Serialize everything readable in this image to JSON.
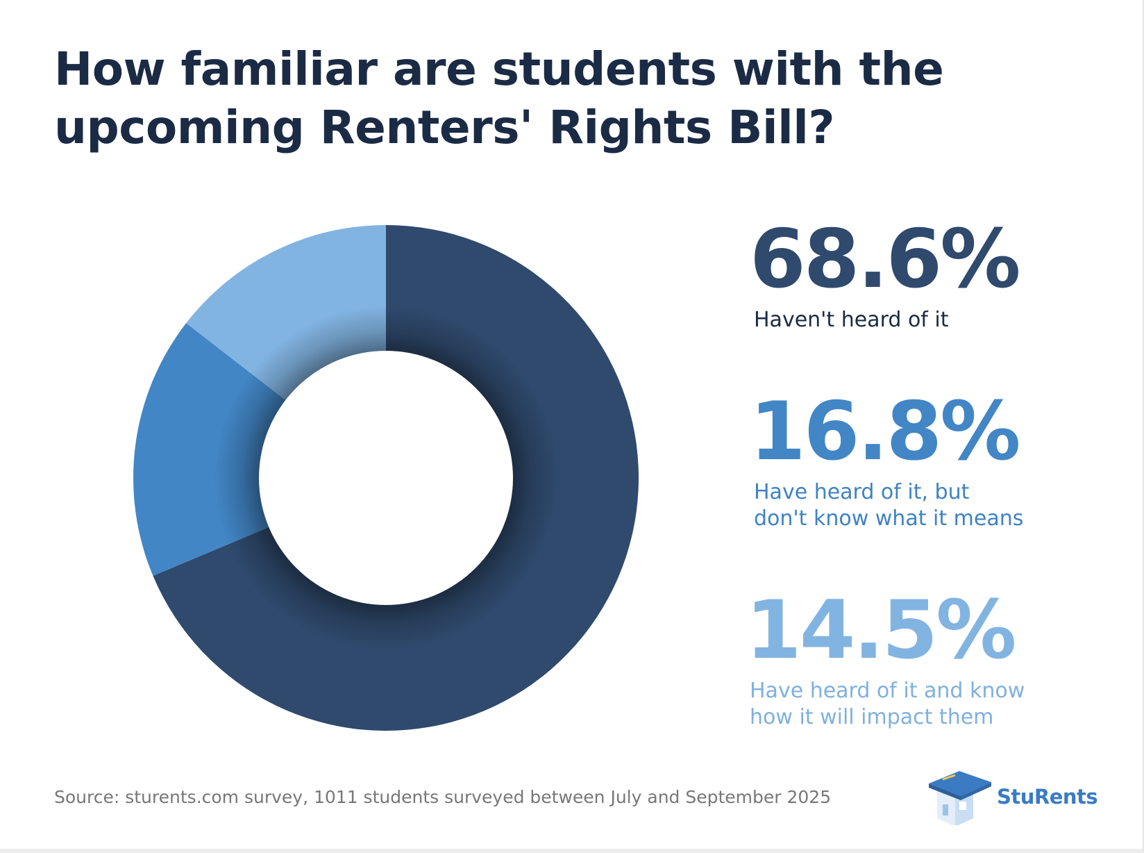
{
  "title_lines": [
    "How familiar are students with the",
    "upcoming Renters' Rights Bill?"
  ],
  "chart_data": {
    "type": "pie",
    "donut": true,
    "start_angle": "12 o'clock, clockwise",
    "slices": [
      {
        "label": "Haven't heard of it",
        "value": 68.6,
        "display": "68.6%",
        "color": "#2f4a6d"
      },
      {
        "label": "Have heard of it, but don't know what it means",
        "value": 16.8,
        "display": "16.8%",
        "color": "#4286c6"
      },
      {
        "label": "Have heard of it and know how it will impact them",
        "value": 14.5,
        "display": "14.5%",
        "color": "#82b4e2"
      }
    ]
  },
  "stats": [
    {
      "pct": "68.6%",
      "label": "Haven't heard of it",
      "color": "#2f4a6d",
      "label_color": "#1b2b45"
    },
    {
      "pct": "16.8%",
      "label": "Have heard of it, but\ndon't know what it means",
      "color": "#4286c6",
      "label_color": "#3f82c4"
    },
    {
      "pct": "14.5%",
      "label": "Have heard of it and know\nhow it will impact them",
      "color": "#82b4e2",
      "label_color": "#7fb0df"
    }
  ],
  "source": "Source: sturents.com survey, 1011 students surveyed between July and September 2025",
  "logo": {
    "text": "StuRents",
    "icon": "graduation-cap-house-icon",
    "color": "#3a7bc4"
  }
}
